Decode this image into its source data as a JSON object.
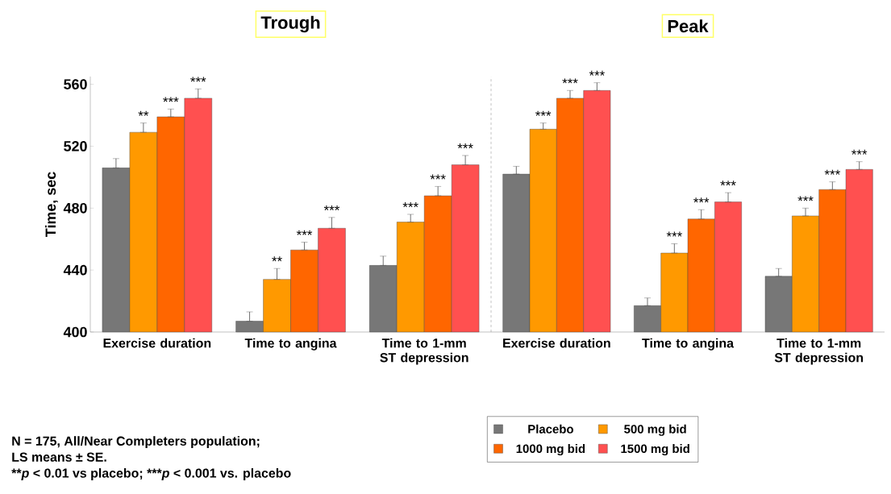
{
  "chart_data": [
    {
      "type": "bar",
      "title": "Trough",
      "ylabel": "Time, sec",
      "categories": [
        "Exercise duration",
        "Time to angina",
        "Time to 1-mm ST depression"
      ],
      "ylim": [
        400,
        565
      ],
      "yticks": [
        400,
        440,
        480,
        520,
        560
      ],
      "series": [
        {
          "color": "#777777",
          "values": [
            506,
            407,
            443
          ],
          "errors": [
            [
              506,
              512
            ],
            [
              407,
              413
            ],
            [
              443,
              449
            ]
          ]
        },
        {
          "color": "#ff9900",
          "values": [
            529,
            434,
            471
          ],
          "errors": [
            [
              529,
              535
            ],
            [
              434,
              441
            ],
            [
              471,
              476
            ]
          ],
          "value_labels": [
            "**",
            "**",
            "***"
          ]
        },
        {
          "color": "#ff6600",
          "values": [
            539,
            453,
            488
          ],
          "errors": [
            [
              539,
              544
            ],
            [
              453,
              458
            ],
            [
              488,
              494
            ]
          ],
          "value_labels": [
            "***",
            "***",
            "***"
          ]
        },
        {
          "color": "#ff5050",
          "values": [
            551,
            467,
            508
          ],
          "errors": [
            [
              551,
              557
            ],
            [
              467,
              474
            ],
            [
              508,
              514
            ]
          ],
          "value_labels": [
            "***",
            "***",
            "***"
          ]
        }
      ],
      "annotations": [
        "N = 175, All/Near Completers population;",
        "LS means ± SE.",
        "**",
        "*p* < 0.01 vs placebo;",
        "***",
        "*p* < 0.001 vs. placebo"
      ]
    },
    {
      "type": "bar",
      "title": "Peak",
      "categories": [
        "Exercise duration",
        "Time to angina",
        "Time to 1-mm ST depression"
      ],
      "ylim": [
        400,
        565
      ],
      "tick_labels": "x",
      "legend": "bottom",
      "series": [
        {
          "name": "Placebo",
          "color": "#777777",
          "values": [
            502,
            417,
            436
          ],
          "errors": [
            [
              502,
              507
            ],
            [
              417,
              422
            ],
            [
              436,
              441
            ]
          ]
        },
        {
          "name": "500 mg bid",
          "color": "#ff9900",
          "values": [
            531,
            451,
            475
          ],
          "errors": [
            [
              531,
              535
            ],
            [
              451,
              457
            ],
            [
              475,
              480
            ]
          ],
          "value_labels": [
            "***",
            "***",
            "***"
          ]
        },
        {
          "name": "1000 mg bid",
          "color": "#ff6600",
          "values": [
            551,
            473,
            492
          ],
          "errors": [
            [
              551,
              556
            ],
            [
              473,
              479
            ],
            [
              492,
              497
            ]
          ],
          "value_labels": [
            "***",
            "***",
            "***"
          ]
        },
        {
          "name": "1500 mg bid",
          "color": "#ff5050",
          "values": [
            556,
            484,
            505
          ],
          "errors": [
            [
              556,
              561
            ],
            [
              484,
              490
            ],
            [
              505,
              510
            ]
          ],
          "value_labels": [
            "***",
            "***",
            "***"
          ]
        }
      ]
    }
  ]
}
